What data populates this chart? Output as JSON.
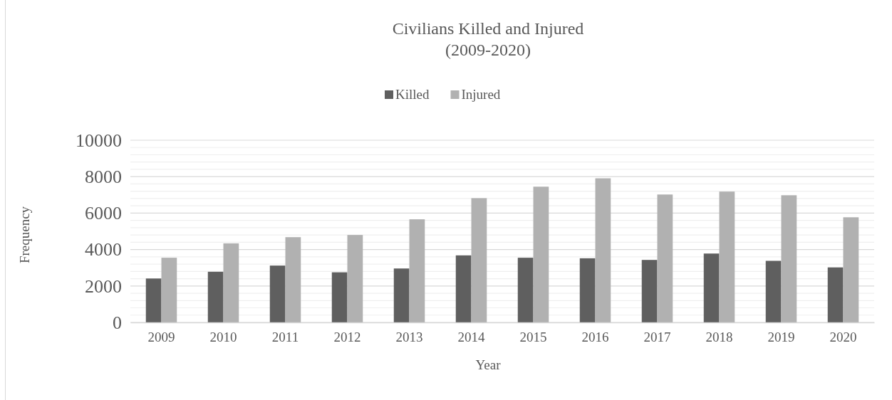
{
  "chart_data": {
    "type": "bar",
    "title": "Civilians Killed and Injured\n(2009-2020)",
    "xlabel": "Year",
    "ylabel": "Frequency",
    "categories": [
      "2009",
      "2010",
      "2011",
      "2012",
      "2013",
      "2014",
      "2015",
      "2016",
      "2017",
      "2018",
      "2019",
      "2020"
    ],
    "series": [
      {
        "name": "Killed",
        "color": "#5f5f5f",
        "values": [
          2410,
          2780,
          3120,
          2750,
          2960,
          3680,
          3550,
          3520,
          3430,
          3780,
          3380,
          3020
        ]
      },
      {
        "name": "Injured",
        "color": "#b1b1b1",
        "values": [
          3550,
          4340,
          4680,
          4800,
          5660,
          6820,
          7450,
          7910,
          7020,
          7180,
          6980,
          5770
        ]
      }
    ],
    "ylim": [
      0,
      10000
    ],
    "yticks": [
      0,
      {
        "value": 400,
        "label": null
      },
      {
        "value": 800,
        "label": null
      },
      {
        "value": 1200,
        "label": null
      },
      {
        "value": 1600,
        "label": null
      },
      2000,
      {
        "value": 2400,
        "label": null
      },
      {
        "value": 2800,
        "label": null
      },
      {
        "value": 3200,
        "label": null
      },
      {
        "value": 3600,
        "label": null
      },
      4000,
      {
        "value": 4400,
        "label": null
      },
      {
        "value": 4800,
        "label": null
      },
      {
        "value": 5200,
        "label": null
      },
      {
        "value": 5600,
        "label": null
      },
      6000,
      {
        "value": 6400,
        "label": null
      },
      {
        "value": 6800,
        "label": null
      },
      {
        "value": 7200,
        "label": null
      },
      {
        "value": 7600,
        "label": null
      },
      8000,
      {
        "value": 8400,
        "label": null
      },
      {
        "value": 8800,
        "label": null
      },
      {
        "value": 9200,
        "label": null
      },
      {
        "value": 9600,
        "label": null
      },
      10000
    ],
    "grid": "y",
    "legend": "top"
  }
}
